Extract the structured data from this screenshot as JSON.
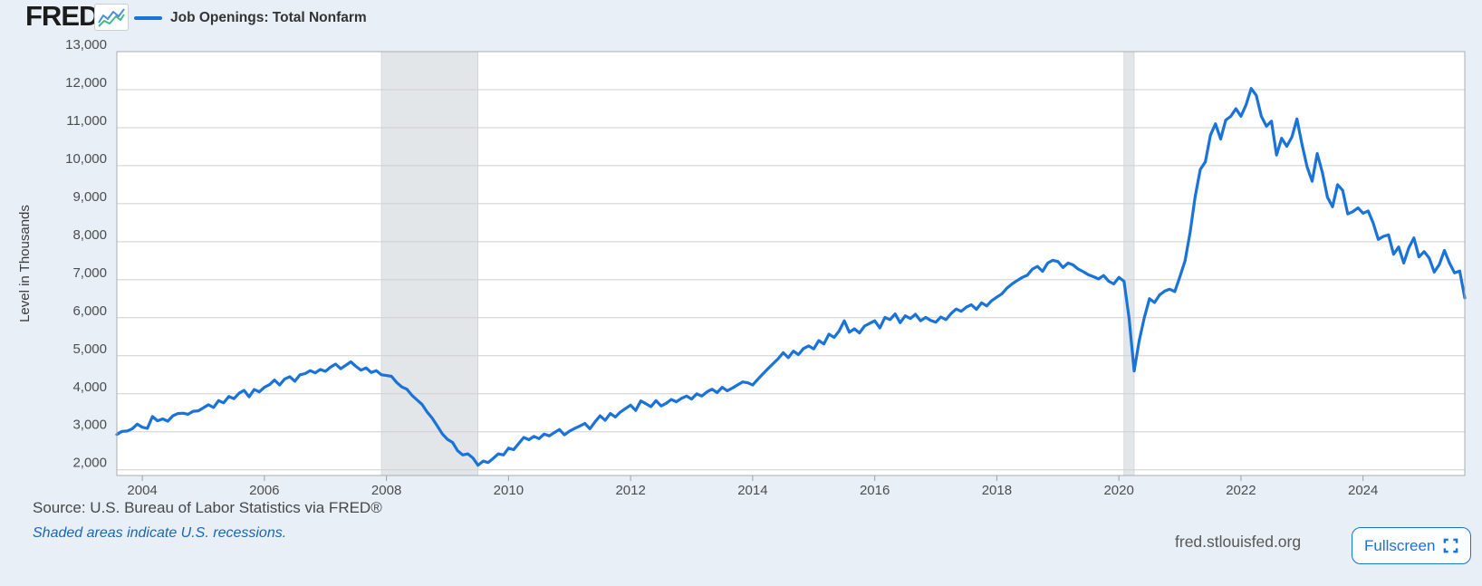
{
  "header": {
    "logo_text": "FRED",
    "logo_reg_mark": "®",
    "legend_label": "Job Openings: Total Nonfarm"
  },
  "footer": {
    "source_text": "Source: U.S. Bureau of Labor Statistics via FRED®",
    "recession_note": "Shaded areas indicate U.S. recessions.",
    "site_text": "fred.stlouisfed.org",
    "fullscreen_label": "Fullscreen"
  },
  "colors": {
    "line": "#1a73d9",
    "page_background": "#e8eff7",
    "plot_background": "#ffffff",
    "gridline": "#cfcfcf",
    "plot_border": "#a9adb2",
    "recession_band": "#e2e6e9",
    "axis_text": "#4d4d4d",
    "link_blue": "#1c66b0",
    "icon_blue": "#4a8fdd",
    "icon_green": "#42b883"
  },
  "chart_data": {
    "type": "line",
    "title": "Job Openings: Total Nonfarm",
    "ylabel": "Level in Thousands",
    "xlabel": "",
    "units": "thousands",
    "frequency": "monthly",
    "x_range": [
      2003.583,
      2025.667
    ],
    "y_range": [
      1850,
      13000
    ],
    "grid": true,
    "legend_position": "top-left",
    "y_ticks": [
      {
        "value": 2000,
        "label": "2,000"
      },
      {
        "value": 3000,
        "label": "3,000"
      },
      {
        "value": 4000,
        "label": "4,000"
      },
      {
        "value": 5000,
        "label": "5,000"
      },
      {
        "value": 6000,
        "label": "6,000"
      },
      {
        "value": 7000,
        "label": "7,000"
      },
      {
        "value": 8000,
        "label": "8,000"
      },
      {
        "value": 9000,
        "label": "9,000"
      },
      {
        "value": 10000,
        "label": "10,000"
      },
      {
        "value": 11000,
        "label": "11,000"
      },
      {
        "value": 12000,
        "label": "12,000"
      },
      {
        "value": 13000,
        "label": "13,000"
      }
    ],
    "x_ticks": [
      {
        "value": 2004,
        "label": "2004"
      },
      {
        "value": 2006,
        "label": "2006"
      },
      {
        "value": 2008,
        "label": "2008"
      },
      {
        "value": 2010,
        "label": "2010"
      },
      {
        "value": 2012,
        "label": "2012"
      },
      {
        "value": 2014,
        "label": "2014"
      },
      {
        "value": 2016,
        "label": "2016"
      },
      {
        "value": 2018,
        "label": "2018"
      },
      {
        "value": 2020,
        "label": "2020"
      },
      {
        "value": 2022,
        "label": "2022"
      },
      {
        "value": 2024,
        "label": "2024"
      }
    ],
    "recessions": [
      {
        "start": 2007.917,
        "end": 2009.5
      },
      {
        "start": 2020.083,
        "end": 2020.25
      }
    ],
    "series": [
      {
        "name": "Job Openings: Total Nonfarm",
        "start_year": 2003,
        "start_month": 8,
        "values": [
          2930,
          3010,
          3020,
          3080,
          3200,
          3120,
          3090,
          3400,
          3290,
          3340,
          3280,
          3420,
          3480,
          3490,
          3460,
          3540,
          3550,
          3630,
          3710,
          3640,
          3820,
          3760,
          3930,
          3870,
          4010,
          4090,
          3920,
          4110,
          4050,
          4170,
          4240,
          4360,
          4230,
          4390,
          4450,
          4330,
          4500,
          4530,
          4610,
          4550,
          4640,
          4590,
          4700,
          4780,
          4660,
          4750,
          4840,
          4720,
          4620,
          4680,
          4560,
          4610,
          4500,
          4480,
          4460,
          4300,
          4180,
          4120,
          3960,
          3840,
          3720,
          3520,
          3360,
          3150,
          2940,
          2800,
          2720,
          2500,
          2390,
          2420,
          2310,
          2120,
          2230,
          2190,
          2300,
          2420,
          2390,
          2570,
          2530,
          2690,
          2850,
          2790,
          2880,
          2820,
          2940,
          2890,
          2980,
          3060,
          2920,
          3020,
          3090,
          3150,
          3220,
          3080,
          3260,
          3420,
          3300,
          3480,
          3390,
          3520,
          3610,
          3700,
          3560,
          3810,
          3740,
          3660,
          3820,
          3680,
          3750,
          3850,
          3790,
          3880,
          3940,
          3860,
          4000,
          3940,
          4050,
          4120,
          4030,
          4170,
          4080,
          4150,
          4230,
          4310,
          4290,
          4230,
          4380,
          4520,
          4660,
          4790,
          4920,
          5080,
          4950,
          5120,
          5030,
          5190,
          5260,
          5180,
          5400,
          5310,
          5570,
          5480,
          5650,
          5920,
          5620,
          5710,
          5600,
          5780,
          5850,
          5920,
          5730,
          6010,
          5950,
          6100,
          5870,
          6050,
          5980,
          6090,
          5920,
          6010,
          5930,
          5880,
          6020,
          5950,
          6110,
          6230,
          6170,
          6280,
          6340,
          6220,
          6390,
          6310,
          6450,
          6540,
          6630,
          6780,
          6890,
          6980,
          7060,
          7120,
          7280,
          7350,
          7220,
          7440,
          7510,
          7480,
          7320,
          7440,
          7390,
          7280,
          7210,
          7130,
          7080,
          7020,
          7110,
          6960,
          6890,
          7060,
          6960,
          5990,
          4600,
          5400,
          6000,
          6500,
          6400,
          6600,
          6700,
          6750,
          6690,
          7080,
          7500,
          8250,
          9190,
          9900,
          10100,
          10800,
          11100,
          10700,
          11200,
          11300,
          11500,
          11300,
          11600,
          12030,
          11850,
          11300,
          11040,
          11170,
          10280,
          10720,
          10510,
          10750,
          11230,
          10560,
          9970,
          9590,
          10320,
          9820,
          9170,
          8920,
          9500,
          9350,
          8730,
          8790,
          8890,
          8750,
          8810,
          8490,
          8060,
          8140,
          8180,
          7670,
          7860,
          7440,
          7840,
          8100,
          7600,
          7740,
          7570,
          7200,
          7400,
          7770,
          7440,
          7180,
          7230,
          6520
        ]
      }
    ]
  }
}
